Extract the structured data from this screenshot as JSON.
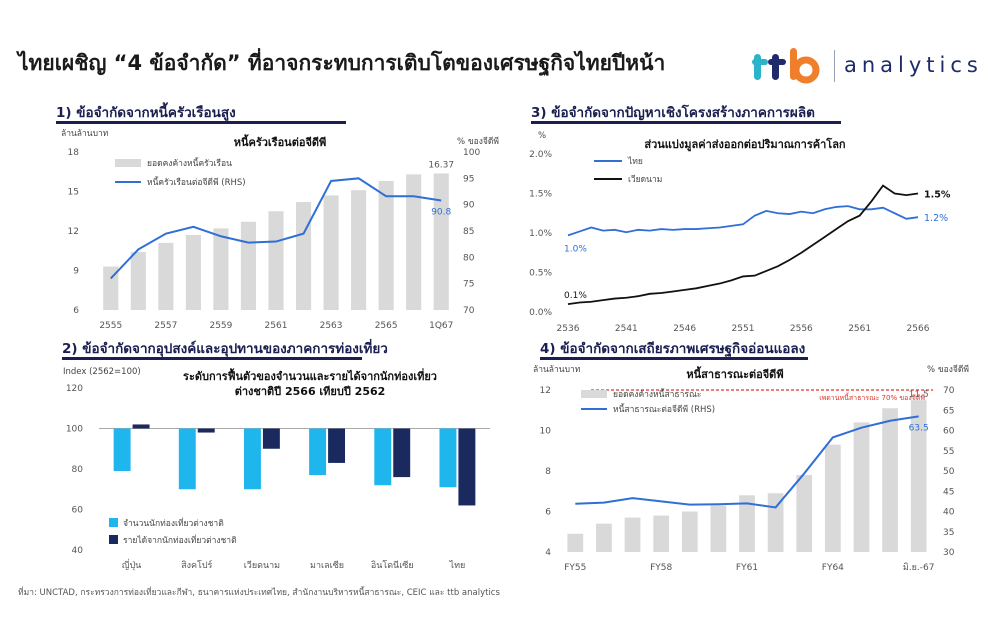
{
  "header": {
    "title": "ไทยเผชิญ “4 ข้อจำกัด” ที่อาจกระทบการเติบโตของเศรษฐกิจไทยปีหน้า",
    "logo_brand": "ttb",
    "logo_text": "analytics"
  },
  "source": "ที่มา: UNCTAD, กระทรวงการท่องเที่ยวและกีฬา, ธนาคารแห่งประเทศไทย, สำนักงานบริหารหนี้สาธารณะ, CEIC และ ttb analytics",
  "colors": {
    "navy": "#1a1f4f",
    "bar_gray": "#d9d9d9",
    "line_blue": "#2f6fd6",
    "thai_blue": "#2f6fd6",
    "vn_black": "#111111",
    "tourist_cyan": "#1fb6ee",
    "revenue_navy": "#1a2a5e",
    "limit_red": "#e0332a",
    "logo_teal": "#2ab3c9",
    "logo_orange": "#f07f2c",
    "logo_navy": "#1f2a6b"
  },
  "chart_data": [
    {
      "id": "household_debt",
      "type": "bar",
      "section_title": "1) ข้อจำกัดจากหนี้ครัวเรือนสูง",
      "title": "หนี้ครัวเรือนต่อจีดีพี",
      "left_unit": "ล้านล้านบาท",
      "right_unit": "% ของจีดีพี",
      "categories": [
        "2555",
        "2556",
        "2557",
        "2558",
        "2559",
        "2560",
        "2561",
        "2562",
        "2563",
        "2564",
        "2565",
        "2566",
        "1Q67"
      ],
      "x_tick_labels": [
        "2555",
        "2557",
        "2559",
        "2561",
        "2563",
        "2565",
        "1Q67"
      ],
      "x_tick_index": [
        0,
        2,
        4,
        6,
        8,
        10,
        12
      ],
      "ylim": [
        6,
        18
      ],
      "yticks": [
        6,
        9,
        12,
        15,
        18
      ],
      "ylim_right": [
        70,
        100
      ],
      "yticks_right": [
        70,
        75,
        80,
        85,
        90,
        95,
        100
      ],
      "series": [
        {
          "name": "ยอดคงค้างหนี้ครัวเรือน",
          "kind": "bar",
          "values": [
            9.3,
            10.4,
            11.1,
            11.7,
            12.2,
            12.7,
            13.5,
            14.2,
            14.7,
            15.1,
            15.8,
            16.3,
            16.37
          ]
        },
        {
          "name": "หนี้ครัวเรือนต่อจีดีพี (RHS)",
          "kind": "line",
          "axis": "right",
          "values": [
            76.0,
            81.5,
            84.5,
            85.8,
            84.0,
            82.8,
            83.0,
            84.5,
            94.5,
            95.0,
            91.6,
            91.6,
            90.8
          ]
        }
      ],
      "data_labels": {
        "bar_last": "16.37",
        "line_last": "90.8"
      }
    },
    {
      "id": "export_share",
      "type": "line",
      "section_title": "3) ข้อจำกัดจากปัญหาเชิงโครงสร้างภาคการผลิต",
      "title": "ส่วนแบ่งมูลค่าส่งออกต่อปริมาณการค้าโลก",
      "left_unit": "%",
      "x": [
        2536,
        2537,
        2538,
        2539,
        2540,
        2541,
        2542,
        2543,
        2544,
        2545,
        2546,
        2547,
        2548,
        2549,
        2550,
        2551,
        2552,
        2553,
        2554,
        2555,
        2556,
        2557,
        2558,
        2559,
        2560,
        2561,
        2562,
        2563,
        2564,
        2565,
        2566
      ],
      "x_tick_labels": [
        "2536",
        "2541",
        "2546",
        "2551",
        "2556",
        "2561",
        "2566"
      ],
      "ylim": [
        0.0,
        2.0
      ],
      "yticks": [
        0.0,
        0.5,
        1.0,
        1.5,
        2.0
      ],
      "ytick_labels": [
        "0.0%",
        "0.5%",
        "1.0%",
        "1.5%",
        "2.0%"
      ],
      "series": [
        {
          "name": "ไทย",
          "values": [
            0.97,
            1.02,
            1.07,
            1.03,
            1.04,
            1.01,
            1.04,
            1.03,
            1.05,
            1.04,
            1.05,
            1.05,
            1.06,
            1.07,
            1.09,
            1.11,
            1.22,
            1.28,
            1.25,
            1.24,
            1.27,
            1.25,
            1.3,
            1.33,
            1.34,
            1.3,
            1.3,
            1.32,
            1.25,
            1.18,
            1.2
          ]
        },
        {
          "name": "เวียดนาม",
          "values": [
            0.1,
            0.12,
            0.13,
            0.15,
            0.17,
            0.18,
            0.2,
            0.23,
            0.24,
            0.26,
            0.28,
            0.3,
            0.33,
            0.36,
            0.4,
            0.45,
            0.46,
            0.52,
            0.58,
            0.66,
            0.75,
            0.85,
            0.95,
            1.05,
            1.15,
            1.22,
            1.4,
            1.6,
            1.5,
            1.48,
            1.5
          ]
        }
      ],
      "data_labels": {
        "thai_first": "1.0%",
        "vn_first": "0.1%",
        "vn_last": "1.5%",
        "thai_last": "1.2%"
      }
    },
    {
      "id": "tourism_recovery",
      "type": "bar",
      "section_title": "2) ข้อจำกัดจากอุปสงค์และอุปทานของภาคการท่องเที่ยว",
      "title": "ระดับการฟื้นตัวของจำนวนและรายได้จากนักท่องเที่ยว ต่างชาติปี 2566 เทียบปี 2562",
      "title_lines": [
        "ระดับการฟื้นตัวของจำนวนและรายได้จากนักท่องเที่ยว",
        "ต่างชาติปี 2566 เทียบปี 2562"
      ],
      "ylabel": "Index (2562=100)",
      "baseline": 100,
      "categories": [
        "ญี่ปุ่น",
        "สิงคโปร์",
        "เวียดนาม",
        "มาเลเซีย",
        "อินโดนีเซีย",
        "ไทย"
      ],
      "ylim": [
        40,
        120
      ],
      "yticks": [
        40,
        60,
        80,
        100,
        120
      ],
      "series": [
        {
          "name": "จำนวนนักท่องเที่ยวต่างชาติ",
          "values": [
            79,
            70,
            70,
            77,
            72,
            71
          ]
        },
        {
          "name": "รายได้จากนักท่องเที่ยวต่างชาติ",
          "values": [
            102,
            98,
            90,
            83,
            76,
            62
          ]
        }
      ]
    },
    {
      "id": "public_debt",
      "type": "bar",
      "section_title": "4) ข้อจำกัดจากเสถียรภาพเศรษฐกิจอ่อนแอลง",
      "title": "หนี้สาธารณะต่อจีดีพี",
      "left_unit": "ล้านล้านบาท",
      "right_unit": "% ของจีดีพี",
      "annotation": "เพดานหนี้สาธารณะ 70% ของจีดีพี",
      "categories": [
        "FY55",
        "FY56",
        "FY57",
        "FY58",
        "FY59",
        "FY60",
        "FY61",
        "FY62",
        "FY63",
        "FY64",
        "FY65",
        "FY66",
        "มิ.ย.-67"
      ],
      "x_tick_labels": [
        "FY55",
        "FY58",
        "FY61",
        "FY64",
        "มิ.ย.-67"
      ],
      "x_tick_index": [
        0,
        3,
        6,
        9,
        12
      ],
      "ylim": [
        4,
        12
      ],
      "yticks": [
        4,
        6,
        8,
        10,
        12
      ],
      "ylim_right": [
        30,
        70
      ],
      "yticks_right": [
        30,
        35,
        40,
        45,
        50,
        55,
        60,
        65,
        70
      ],
      "limit_value": 70,
      "series": [
        {
          "name": "ยอดคงค้างหนี้สาธารณะ",
          "kind": "bar",
          "values": [
            4.9,
            5.4,
            5.7,
            5.8,
            6.0,
            6.3,
            6.8,
            6.9,
            7.8,
            9.3,
            10.4,
            11.1,
            11.5
          ]
        },
        {
          "name": "หนี้สาธารณะต่อจีดีพี (RHS)",
          "kind": "line",
          "axis": "right",
          "values": [
            41.9,
            42.2,
            43.3,
            42.5,
            41.7,
            41.8,
            42.0,
            41.0,
            49.4,
            58.3,
            60.7,
            62.4,
            63.5
          ]
        }
      ],
      "data_labels": {
        "bar_last": "11.5",
        "line_last": "63.5"
      }
    }
  ]
}
